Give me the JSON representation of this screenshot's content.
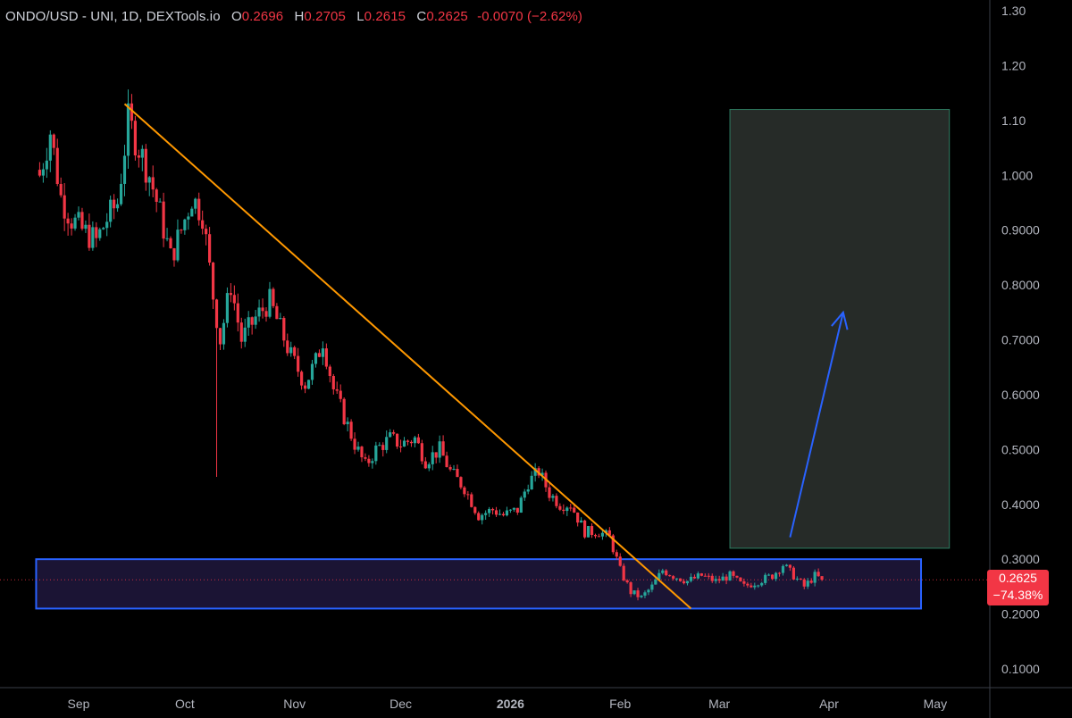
{
  "legend": {
    "symbol": "ONDO/USD - UNI, 1D, DEXTools.io",
    "open_label": "O",
    "open": "0.2696",
    "high_label": "H",
    "high": "0.2705",
    "low_label": "L",
    "low": "0.2615",
    "close_label": "C",
    "close": "0.2625",
    "change": "-0.0070 (−2.62%)"
  },
  "price_tag": {
    "price": "0.2625",
    "change_pct": "−74.38%"
  },
  "colors": {
    "up": "#26a69a",
    "down": "#f23645",
    "trendline": "#ff9800",
    "zone_border": "#2962ff",
    "zone_fill": "#1b1434",
    "target_border": "#2e7d62",
    "target_fill": "#262b28",
    "arrow": "#2962ff"
  },
  "chart_data": {
    "type": "candlestick",
    "title": "ONDO/USD - UNI, 1D, DEXTools.io",
    "y_axis": {
      "ticks": [
        "1.30",
        "1.20",
        "1.10",
        "1.000",
        "0.9000",
        "0.8000",
        "0.7000",
        "0.6000",
        "0.5000",
        "0.4000",
        "0.3000",
        "0.2000",
        "0.1000"
      ],
      "tick_values": [
        1.3,
        1.2,
        1.1,
        1.0,
        0.9,
        0.8,
        0.7,
        0.6,
        0.5,
        0.4,
        0.3,
        0.2,
        0.1
      ],
      "ylim": [
        0.05,
        1.32
      ]
    },
    "x_axis": {
      "labels": [
        "Sep",
        "Oct",
        "Nov",
        "Dec",
        "2026",
        "Feb",
        "Mar",
        "Apr",
        "May"
      ],
      "label_dates": [
        "2025-09-01",
        "2025-10-01",
        "2025-11-01",
        "2025-12-01",
        "2026-01-01",
        "2026-02-01",
        "2026-03-01",
        "2026-04-01",
        "2026-05-01"
      ],
      "bold_labels": [
        "2026"
      ],
      "start_date": "2025-08-21",
      "end_date": "2026-05-10"
    },
    "series_anchors": {
      "description": "approximate daily close path (date, close) from which candles are drawn",
      "points": [
        [
          "2025-08-21",
          1.0
        ],
        [
          "2025-08-24",
          1.08
        ],
        [
          "2025-08-27",
          0.96
        ],
        [
          "2025-08-30",
          0.92
        ],
        [
          "2025-09-02",
          0.9
        ],
        [
          "2025-09-06",
          0.88
        ],
        [
          "2025-09-09",
          0.92
        ],
        [
          "2025-09-12",
          0.95
        ],
        [
          "2025-09-15",
          1.1
        ],
        [
          "2025-09-18",
          1.05
        ],
        [
          "2025-09-21",
          1.0
        ],
        [
          "2025-09-24",
          0.93
        ],
        [
          "2025-09-27",
          0.85
        ],
        [
          "2025-09-30",
          0.9
        ],
        [
          "2025-10-03",
          0.96
        ],
        [
          "2025-10-06",
          0.93
        ],
        [
          "2025-10-09",
          0.78
        ],
        [
          "2025-10-11",
          0.7
        ],
        [
          "2025-10-14",
          0.8
        ],
        [
          "2025-10-17",
          0.7
        ],
        [
          "2025-10-21",
          0.74
        ],
        [
          "2025-10-25",
          0.77
        ],
        [
          "2025-10-28",
          0.72
        ],
        [
          "2025-10-31",
          0.67
        ],
        [
          "2025-11-04",
          0.62
        ],
        [
          "2025-11-07",
          0.66
        ],
        [
          "2025-11-09",
          0.7
        ],
        [
          "2025-11-12",
          0.61
        ],
        [
          "2025-11-15",
          0.56
        ],
        [
          "2025-11-18",
          0.51
        ],
        [
          "2025-11-21",
          0.47
        ],
        [
          "2025-11-24",
          0.5
        ],
        [
          "2025-11-28",
          0.52
        ],
        [
          "2025-12-01",
          0.51
        ],
        [
          "2025-12-05",
          0.52
        ],
        [
          "2025-12-08",
          0.48
        ],
        [
          "2025-12-12",
          0.5
        ],
        [
          "2025-12-15",
          0.46
        ],
        [
          "2025-12-19",
          0.43
        ],
        [
          "2025-12-23",
          0.38
        ],
        [
          "2025-12-27",
          0.39
        ],
        [
          "2025-12-30",
          0.38
        ],
        [
          "2026-01-03",
          0.39
        ],
        [
          "2026-01-06",
          0.44
        ],
        [
          "2026-01-09",
          0.46
        ],
        [
          "2026-01-12",
          0.42
        ],
        [
          "2026-01-15",
          0.4
        ],
        [
          "2026-01-18",
          0.4
        ],
        [
          "2026-01-22",
          0.35
        ],
        [
          "2026-01-26",
          0.35
        ],
        [
          "2026-01-29",
          0.34
        ],
        [
          "2026-02-01",
          0.28
        ],
        [
          "2026-02-04",
          0.24
        ],
        [
          "2026-02-07",
          0.23
        ],
        [
          "2026-02-10",
          0.25
        ],
        [
          "2026-02-13",
          0.28
        ],
        [
          "2026-02-16",
          0.27
        ],
        [
          "2026-02-20",
          0.26
        ],
        [
          "2026-02-24",
          0.27
        ],
        [
          "2026-02-28",
          0.26
        ],
        [
          "2026-03-04",
          0.27
        ],
        [
          "2026-03-08",
          0.25
        ],
        [
          "2026-03-12",
          0.26
        ],
        [
          "2026-03-16",
          0.27
        ],
        [
          "2026-03-19",
          0.29
        ],
        [
          "2026-03-22",
          0.27
        ],
        [
          "2026-03-25",
          0.25
        ],
        [
          "2026-03-28",
          0.27
        ],
        [
          "2026-03-30",
          0.2625
        ]
      ],
      "spike_low": [
        "2025-10-10",
        0.45
      ]
    },
    "drawings": {
      "trendline": {
        "from": [
          "2025-09-14",
          1.13
        ],
        "to": [
          "2026-02-21",
          0.21
        ]
      },
      "support_zone": {
        "from_date": "2025-08-20",
        "to_date": "2026-04-27",
        "top": 0.3,
        "bottom": 0.21
      },
      "target_box": {
        "from_date": "2026-03-04",
        "to_date": "2026-05-05",
        "top": 1.12,
        "bottom": 0.32
      },
      "arrow": {
        "from": [
          "2026-03-21",
          0.34
        ],
        "to": [
          "2026-04-05",
          0.75
        ]
      },
      "last_price_line": 0.2625
    }
  }
}
